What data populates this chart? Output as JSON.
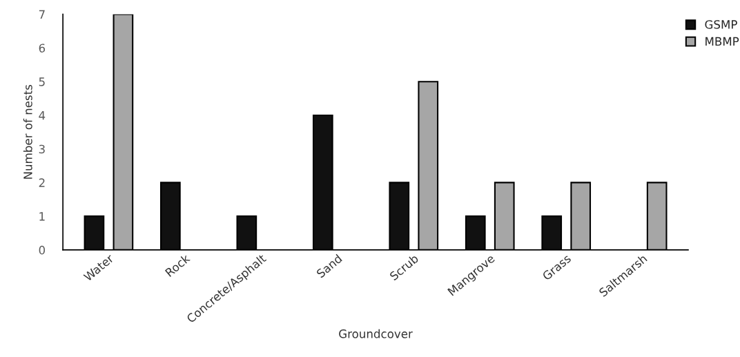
{
  "chart_data": {
    "type": "bar",
    "xlabel": "Groundcover",
    "ylabel": "Number of nests",
    "categories": [
      "Water",
      "Rock",
      "Concrete/Asphalt",
      "Sand",
      "Scrub",
      "Mangrove",
      "Grass",
      "Saltmarsh"
    ],
    "series": [
      {
        "name": "GSMP",
        "color": "#111111",
        "values": [
          1,
          2,
          1,
          4,
          2,
          1,
          1,
          0
        ]
      },
      {
        "name": "MBMP",
        "color": "#a6a6a6",
        "values": [
          7,
          0,
          0,
          0,
          5,
          2,
          2,
          2
        ]
      }
    ],
    "ylim": [
      0,
      7
    ],
    "yticks": [
      0,
      1,
      2,
      3,
      4,
      5,
      6,
      7
    ],
    "grid": false,
    "legend": "top right"
  }
}
